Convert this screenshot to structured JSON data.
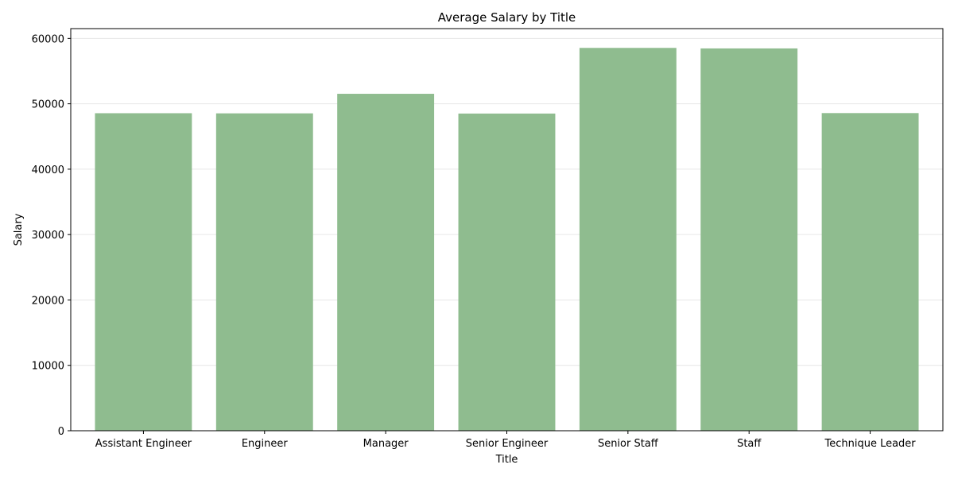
{
  "chart_data": {
    "type": "bar",
    "title": "Average Salary by Title",
    "xlabel": "Title",
    "ylabel": "Salary",
    "categories": [
      "Assistant Engineer",
      "Engineer",
      "Manager",
      "Senior Engineer",
      "Senior Staff",
      "Staff",
      "Technique Leader"
    ],
    "values": [
      48560,
      48540,
      51530,
      48510,
      58550,
      58470,
      48580
    ],
    "ylim": [
      0,
      61500
    ],
    "yticks": [
      0,
      10000,
      20000,
      30000,
      40000,
      50000,
      60000
    ],
    "grid": "horizontal",
    "legend": "none",
    "bar_color": "#8fbc8f",
    "grid_color": "#e6e6e6"
  }
}
